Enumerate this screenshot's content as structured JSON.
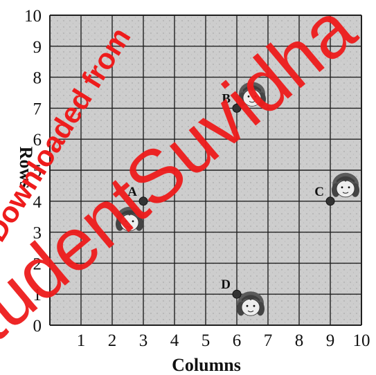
{
  "grid": {
    "x_max": 10,
    "y_max": 10,
    "x_ticks": [
      "1",
      "2",
      "3",
      "4",
      "5",
      "6",
      "7",
      "8",
      "9",
      "10"
    ],
    "y_ticks": [
      "0",
      "1",
      "2",
      "3",
      "4",
      "5",
      "6",
      "7",
      "8",
      "9",
      "10"
    ],
    "x_label": "Columns",
    "y_label": "Rows",
    "background": "#cfcfcf",
    "line_color": "#1f1f1f"
  },
  "points": [
    {
      "label": "A",
      "col": 3,
      "row": 4,
      "icon": "girl-face-icon"
    },
    {
      "label": "B",
      "col": 6,
      "row": 7,
      "icon": "girl-face-icon"
    },
    {
      "label": "C",
      "col": 9,
      "row": 4,
      "icon": "girl-face-icon"
    },
    {
      "label": "D",
      "col": 6,
      "row": 1,
      "icon": "girl-face-icon"
    }
  ],
  "watermark": {
    "line1": "Downloaded from",
    "line2": "StudentSuvidha",
    "color": "#ee1c1c"
  }
}
